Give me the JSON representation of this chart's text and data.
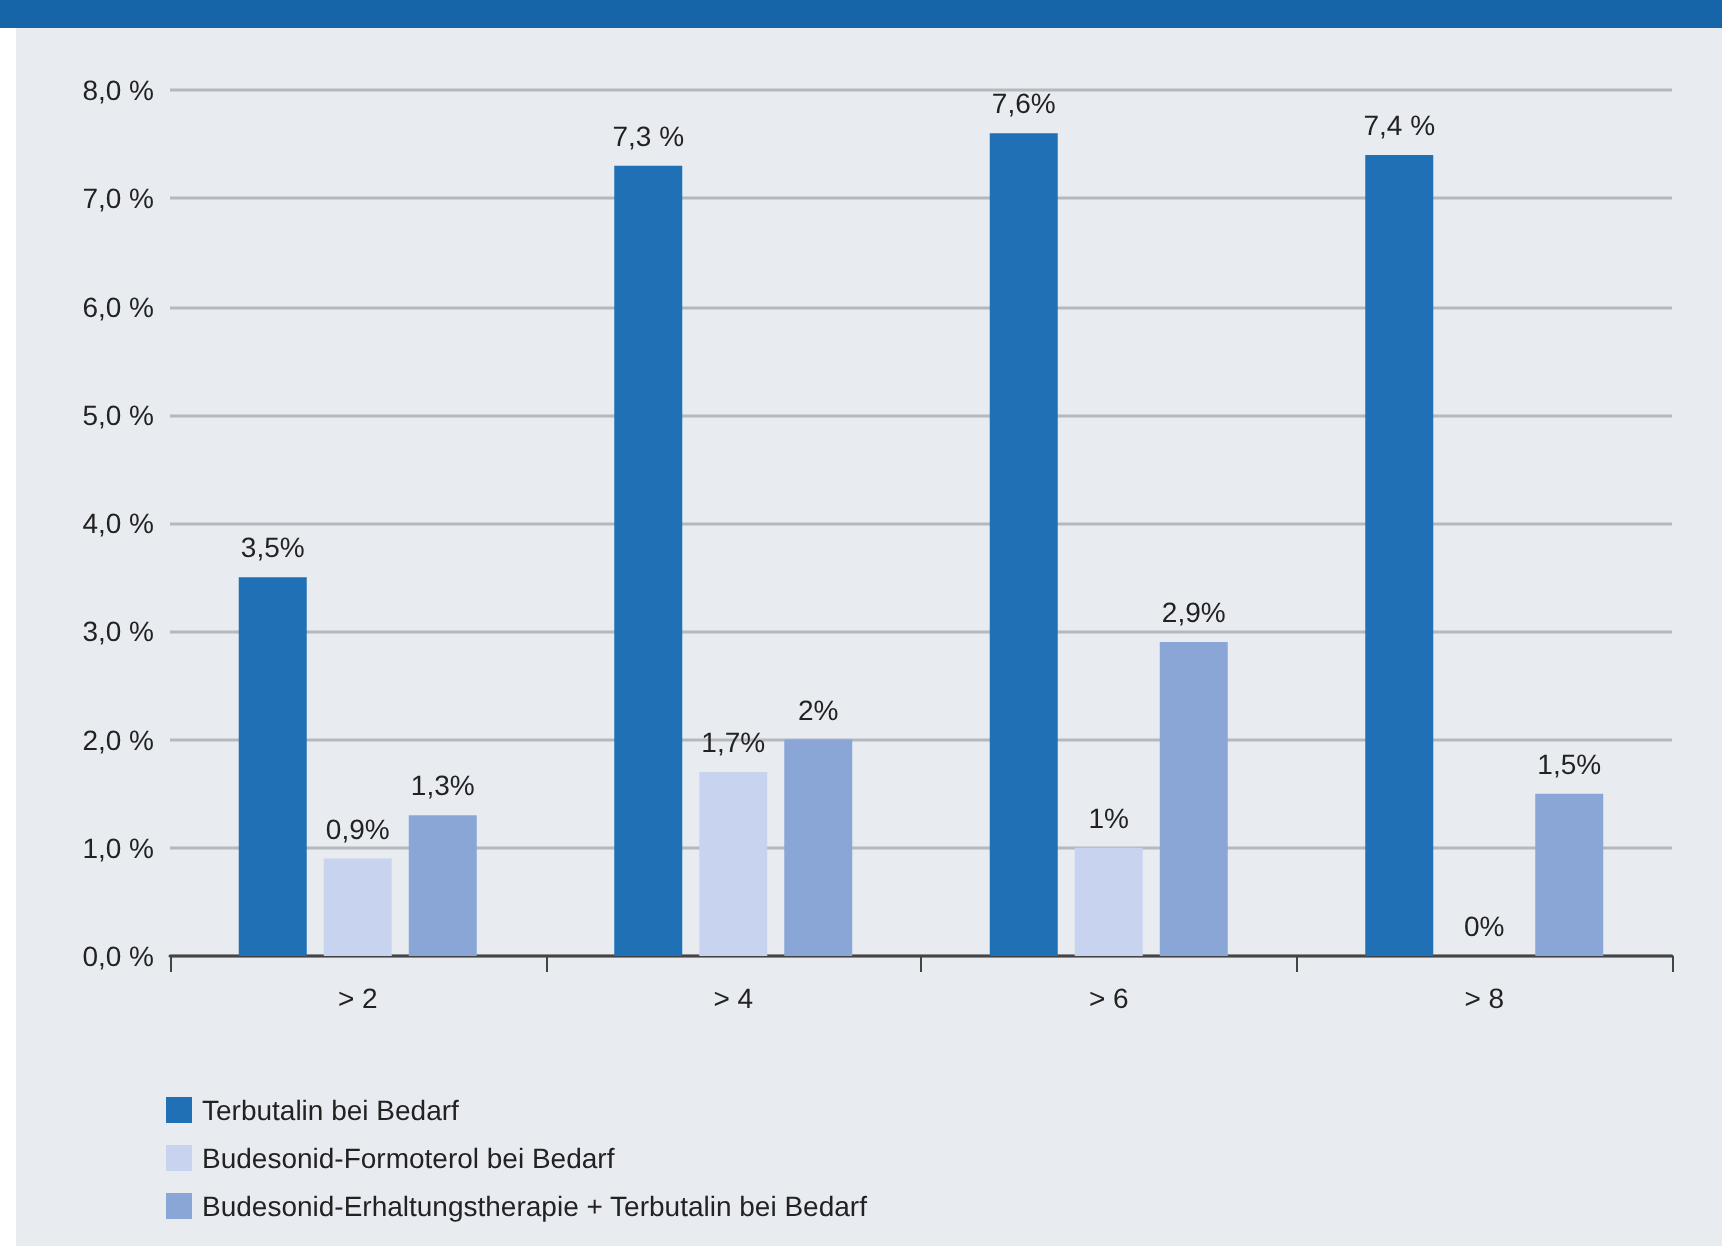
{
  "chart_data": {
    "type": "bar",
    "categories": [
      "> 2",
      "> 4",
      "> 6",
      "> 8"
    ],
    "series": [
      {
        "name": "Terbutalin bei Bedarf",
        "color": "#1f70b5",
        "values": [
          3.5,
          7.3,
          7.6,
          7.4
        ],
        "value_labels": [
          "3,5%",
          "7,3 %",
          "7,6%",
          "7,4 %"
        ]
      },
      {
        "name": "Budesonid-Formoterol bei Bedarf",
        "color": "#c8d4ef",
        "values": [
          0.9,
          1.7,
          1.0,
          0
        ],
        "value_labels": [
          "0,9%",
          "1,7%",
          "1%",
          "0%"
        ]
      },
      {
        "name": "Budesonid-Erhaltungstherapie + Terbutalin bei Bedarf",
        "color": "#8aa6d7",
        "values": [
          1.3,
          2.0,
          2.9,
          1.5
        ],
        "value_labels": [
          "1,3%",
          "2%",
          "2,9%",
          "1,5%"
        ]
      }
    ],
    "ylim": [
      0,
      8
    ],
    "yticks": [
      {
        "value": 0,
        "label": "0,0 %"
      },
      {
        "value": 1,
        "label": "1,0 %"
      },
      {
        "value": 2,
        "label": "2,0 %"
      },
      {
        "value": 3,
        "label": "3,0 %"
      },
      {
        "value": 4,
        "label": "4,0 %"
      },
      {
        "value": 5,
        "label": "5,0 %"
      },
      {
        "value": 6,
        "label": "6,0 %"
      },
      {
        "value": 7,
        "label": "7,0 %"
      },
      {
        "value": 8,
        "label": "8,0 %"
      }
    ],
    "grid": "y",
    "legend": "bottom left"
  }
}
